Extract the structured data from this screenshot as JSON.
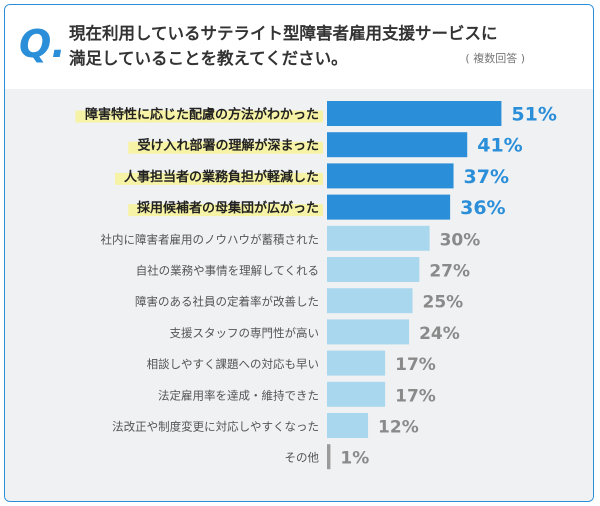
{
  "header": {
    "q_label": "Q.",
    "question_line1": "現在利用しているサテライト型障害者雇用支援サービスに",
    "question_line2": "満足していることを教えてください。",
    "note": "( 複数回答 )"
  },
  "chart_data": {
    "type": "bar",
    "orientation": "horizontal",
    "value_suffix": "%",
    "categories": [
      "障害特性に応じた配慮の方法がわかった",
      "受け入れ部署の理解が深まった",
      "人事担当者の業務負担が軽減した",
      "採用候補者の母集団が広がった",
      "社内に障害者雇用のノウハウが蓄積された",
      "自社の業務や事情を理解してくれる",
      "障害のある社員の定着率が改善した",
      "支援スタッフの専門性が高い",
      "相談しやすく課題への対応も早い",
      "法定雇用率を達成・維持できた",
      "法改正や制度変更に対応しやすくなった",
      "その他"
    ],
    "values": [
      51,
      41,
      37,
      36,
      30,
      27,
      25,
      24,
      17,
      17,
      12,
      1
    ],
    "highlighted": [
      true,
      true,
      true,
      true,
      false,
      false,
      false,
      false,
      false,
      false,
      false,
      false
    ],
    "colors": {
      "highlight_bar": "#2a8ed8",
      "normal_bar": "#a9d8ee",
      "other_bar": "#9a9a9a",
      "highlight_value": "#2a8ed8",
      "normal_value": "#8a8a8a",
      "label_highlight_bg": "#f7f3a6"
    }
  }
}
